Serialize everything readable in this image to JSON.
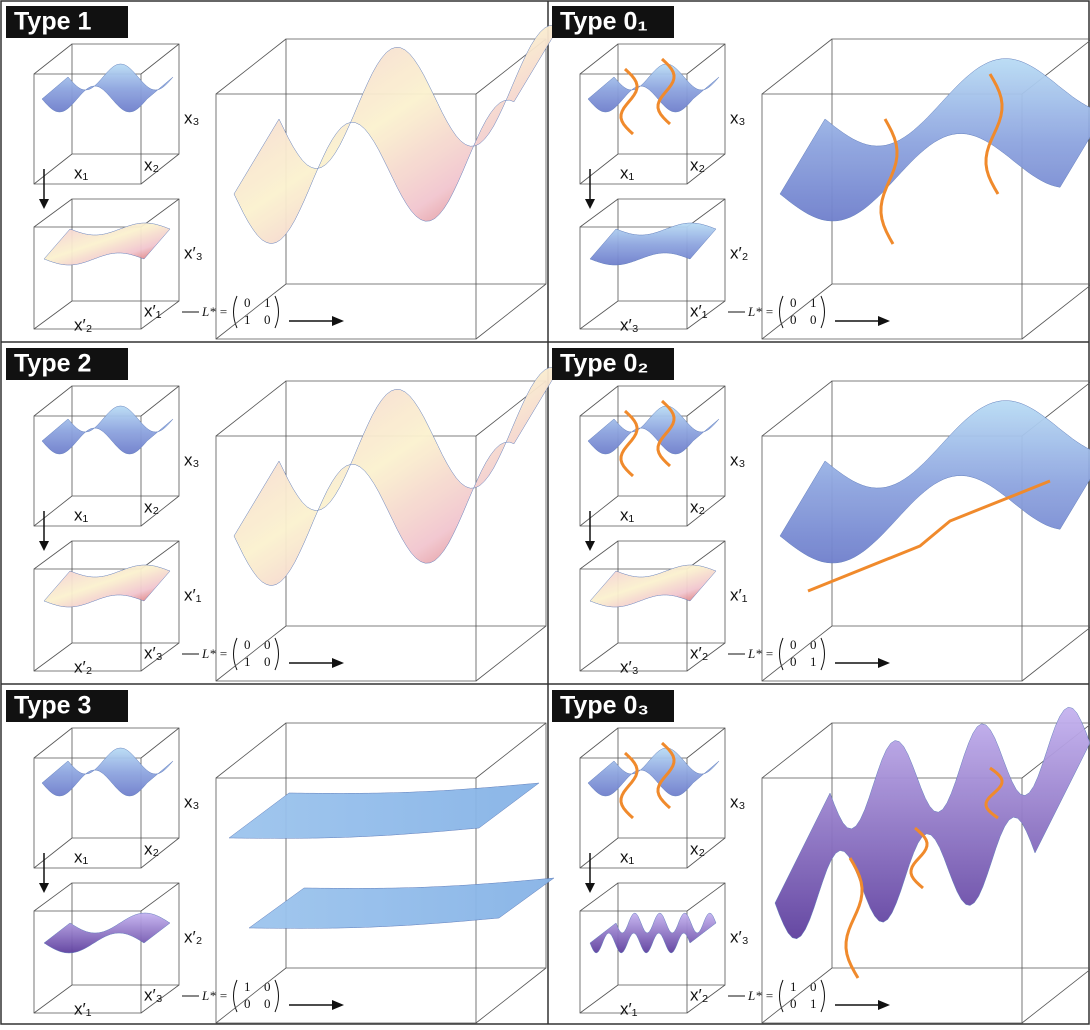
{
  "panels": [
    {
      "title": "Type 1",
      "top_labels": [
        "x₁",
        "x₂",
        "x₃"
      ],
      "bottom_labels": [
        "x′₂",
        "x′₁",
        "x′₃"
      ],
      "matrix_label": "L* =",
      "matrix": [
        [
          0,
          1
        ],
        [
          1,
          0
        ]
      ]
    },
    {
      "title": "Type 0₁",
      "top_labels": [
        "x₁",
        "x₂",
        "x₃"
      ],
      "bottom_labels": [
        "x′₃",
        "x′₁",
        "x′₂"
      ],
      "matrix_label": "L* =",
      "matrix": [
        [
          0,
          1
        ],
        [
          0,
          0
        ]
      ]
    },
    {
      "title": "Type 2",
      "top_labels": [
        "x₁",
        "x₂",
        "x₃"
      ],
      "bottom_labels": [
        "x′₂",
        "x′₃",
        "x′₁"
      ],
      "matrix_label": "L* =",
      "matrix": [
        [
          0,
          0
        ],
        [
          1,
          0
        ]
      ]
    },
    {
      "title": "Type 0₂",
      "top_labels": [
        "x₁",
        "x₂",
        "x₃"
      ],
      "bottom_labels": [
        "x′₃",
        "x′₂",
        "x′₁"
      ],
      "matrix_label": "L* =",
      "matrix": [
        [
          0,
          0
        ],
        [
          0,
          1
        ]
      ]
    },
    {
      "title": "Type 3",
      "top_labels": [
        "x₁",
        "x₂",
        "x₃"
      ],
      "bottom_labels": [
        "x′₁",
        "x′₃",
        "x′₂"
      ],
      "matrix_label": "L* =",
      "matrix": [
        [
          1,
          0
        ],
        [
          0,
          0
        ]
      ]
    },
    {
      "title": "Type 0₃",
      "top_labels": [
        "x₁",
        "x₂",
        "x₃"
      ],
      "bottom_labels": [
        "x′₁",
        "x′₂",
        "x′₃"
      ],
      "matrix_label": "L* =",
      "matrix": [
        [
          1,
          0
        ],
        [
          0,
          1
        ]
      ]
    }
  ]
}
